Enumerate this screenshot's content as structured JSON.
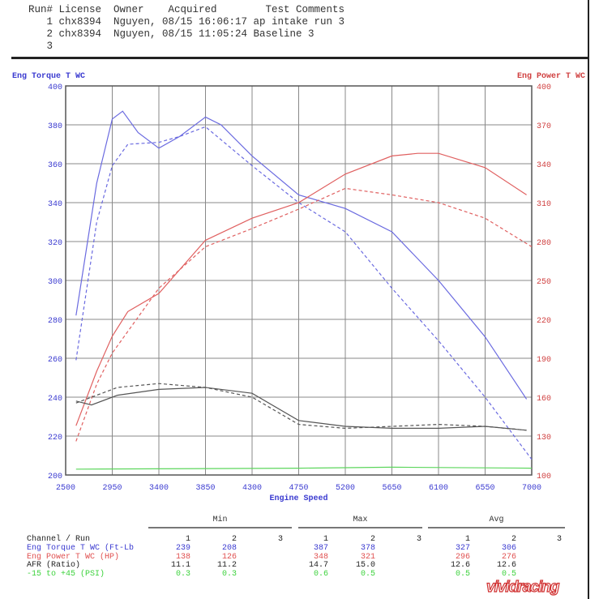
{
  "header": {
    "columns": "Run# License  Owner    Acquired        Test Comments",
    "runs": [
      "   1 chx8394  Nguyen, 08/15 16:06:17 ap intake run 3",
      "   2 chx8394  Nguyen, 08/15 11:05:24 Baseline 3",
      "   3"
    ]
  },
  "chart_data": {
    "type": "line",
    "xlabel": "Engine Speed",
    "ylabel_left": "Eng Torque T WC",
    "ylabel_right": "Eng Power T WC",
    "xlim": [
      2500,
      7000
    ],
    "xticks": [
      2500,
      2950,
      3400,
      3850,
      4300,
      4750,
      5200,
      5650,
      6100,
      6550,
      7000
    ],
    "ylim_left": [
      200,
      400
    ],
    "yticks_left": [
      200,
      220,
      240,
      260,
      280,
      300,
      320,
      340,
      360,
      380,
      400
    ],
    "ylim_right": [
      100,
      400
    ],
    "yticks_right": [
      100,
      130,
      160,
      190,
      220,
      250,
      280,
      310,
      340,
      370,
      400
    ],
    "grid": true,
    "series": [
      {
        "name": "Eng Torque T WC run 1",
        "axis": "left",
        "color": "#6a6ae0",
        "dash": false,
        "x": [
          2600,
          2800,
          2950,
          3050,
          3200,
          3400,
          3600,
          3850,
          4000,
          4300,
          4750,
          5200,
          5650,
          6100,
          6550,
          6950
        ],
        "y": [
          282,
          350,
          383,
          387,
          376,
          368,
          374,
          384,
          380,
          364,
          344,
          337,
          325,
          300,
          271,
          239
        ]
      },
      {
        "name": "Eng Torque T WC run 2",
        "axis": "left",
        "color": "#6a6ae0",
        "dash": true,
        "x": [
          2600,
          2800,
          2950,
          3100,
          3400,
          3600,
          3850,
          4300,
          4750,
          5200,
          5650,
          6100,
          6550,
          7000
        ],
        "y": [
          259,
          330,
          359,
          370,
          371,
          374,
          379,
          359,
          340,
          325,
          296,
          269,
          240,
          208
        ]
      },
      {
        "name": "Eng Power T WC run 1",
        "axis": "right",
        "color": "#e06060",
        "dash": false,
        "x": [
          2600,
          2800,
          2950,
          3100,
          3400,
          3850,
          4300,
          4750,
          5200,
          5650,
          5900,
          6100,
          6550,
          6950
        ],
        "y": [
          138,
          180,
          207,
          226,
          240,
          281,
          298,
          310,
          332,
          346,
          348,
          348,
          337,
          316
        ]
      },
      {
        "name": "Eng Power T WC run 2",
        "axis": "right",
        "color": "#e06060",
        "dash": true,
        "x": [
          2600,
          2800,
          2950,
          3400,
          3850,
          4300,
          4750,
          5200,
          5650,
          6100,
          6550,
          7000
        ],
        "y": [
          126,
          170,
          194,
          244,
          276,
          290,
          305,
          321,
          316,
          310,
          298,
          276
        ]
      },
      {
        "name": "AFR run 1",
        "axis": "left",
        "color": "#555",
        "dash": false,
        "x": [
          2600,
          2750,
          3000,
          3400,
          3850,
          4300,
          4750,
          5200,
          5650,
          6100,
          6550,
          6950
        ],
        "y": [
          238,
          236,
          241,
          244,
          245,
          242,
          228,
          225,
          224,
          224,
          225,
          223
        ]
      },
      {
        "name": "AFR run 2",
        "axis": "left",
        "color": "#555",
        "dash": true,
        "x": [
          2600,
          2750,
          3000,
          3400,
          3850,
          4300,
          4750,
          5200,
          5650,
          6100,
          6550,
          6950
        ],
        "y": [
          237,
          240,
          245,
          247,
          245,
          240,
          226,
          224,
          225,
          226,
          225,
          223
        ]
      },
      {
        "name": "-15 to +45 run 1",
        "axis": "left",
        "color": "#5cd65c",
        "dash": false,
        "x": [
          2600,
          4750,
          5650,
          7000
        ],
        "y": [
          203,
          203.5,
          204,
          203.5
        ]
      }
    ]
  },
  "stats": {
    "groups": [
      "Min",
      "Max",
      "Avg"
    ],
    "header": "Channel / Run",
    "runs": [
      "1",
      "2",
      "3"
    ],
    "rows": [
      {
        "label": "Eng Torque T WC (Ft-Lb",
        "color": "#3a3ad0",
        "vals": [
          "239",
          "208",
          "",
          "387",
          "378",
          "",
          "327",
          "306",
          ""
        ]
      },
      {
        "label": "Eng Power T WC (HP)",
        "color": "#e05050",
        "vals": [
          "138",
          "126",
          "",
          "348",
          "321",
          "",
          "296",
          "276",
          ""
        ]
      },
      {
        "label": "AFR (Ratio)",
        "color": "#222",
        "vals": [
          "11.1",
          "11.2",
          "",
          "14.7",
          "15.0",
          "",
          "12.6",
          "12.6",
          ""
        ]
      },
      {
        "label": "-15 to +45 (PSI)",
        "color": "#3cd23c",
        "vals": [
          "0.3",
          "0.3",
          "",
          "0.6",
          "0.5",
          "",
          "0.5",
          "0.5",
          ""
        ]
      }
    ]
  },
  "logo": "vividracing"
}
